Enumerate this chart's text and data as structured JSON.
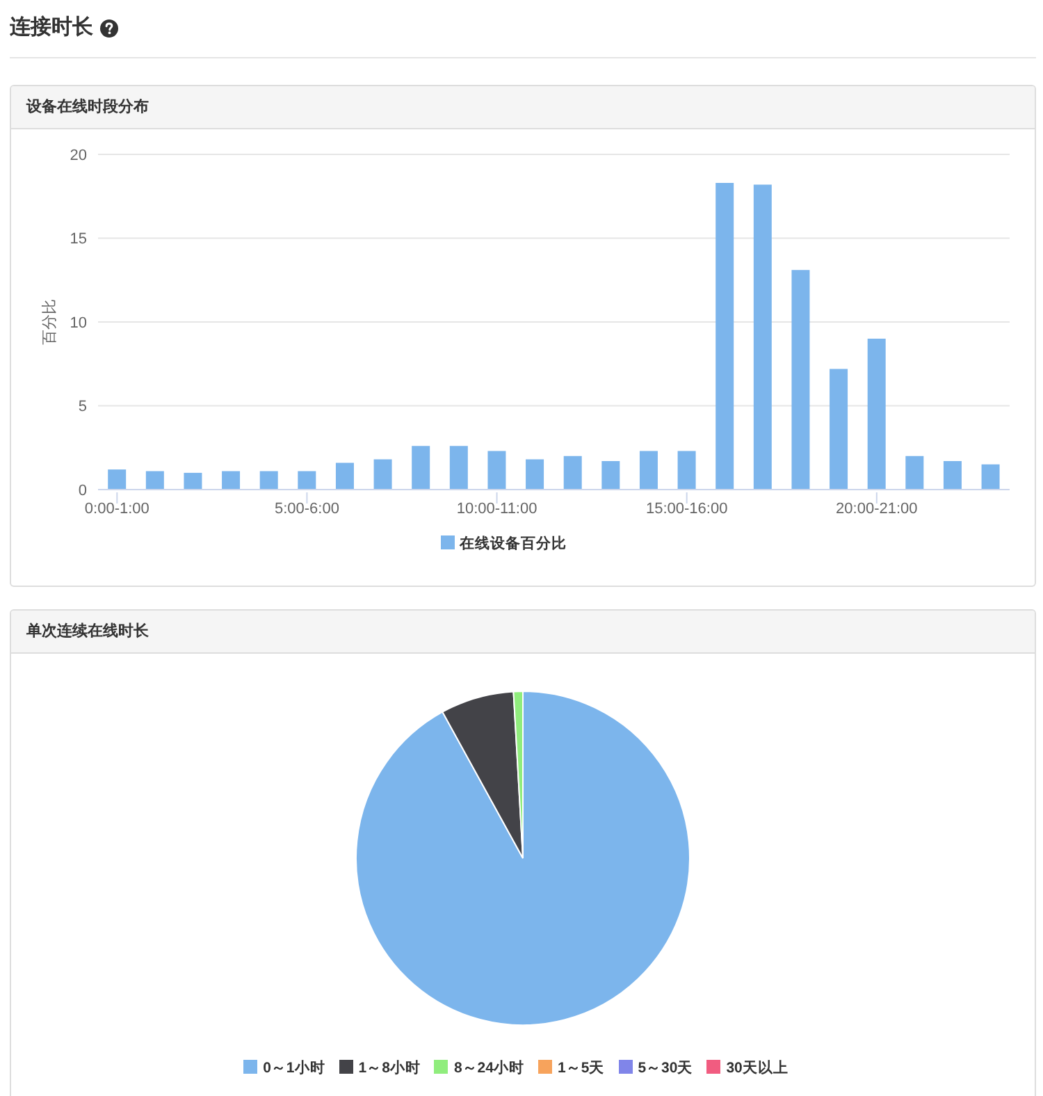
{
  "chart_data": [
    {
      "type": "bar",
      "title": "连接时长",
      "subtitle": "设备在线时段分布",
      "categories": [
        "0:00-1:00",
        null,
        null,
        null,
        null,
        "5:00-6:00",
        null,
        null,
        null,
        null,
        "10:00-11:00",
        null,
        null,
        null,
        null,
        "15:00-16:00",
        null,
        null,
        null,
        null,
        "20:00-21:00",
        null,
        null,
        null
      ],
      "series": [
        {
          "name": "在线设备百分比",
          "color": "#7cb5ec",
          "values": [
            1.2,
            1.1,
            1.0,
            1.1,
            1.1,
            1.1,
            1.6,
            1.8,
            2.6,
            2.6,
            2.3,
            1.8,
            2.0,
            1.7,
            2.3,
            2.3,
            18.3,
            18.2,
            13.1,
            7.2,
            9.0,
            2.0,
            1.7,
            1.5
          ]
        }
      ],
      "ylabel": "百分比",
      "ylim": [
        0,
        20
      ],
      "yticks": [
        0,
        5,
        10,
        15,
        20
      ],
      "grid": "y",
      "legend": "bottom"
    },
    {
      "type": "pie",
      "title": "单次连续在线时长",
      "categories": [
        "0～1小时",
        "1～8小时",
        "8～24小时",
        "1～5天",
        "5～30天",
        "30天以上"
      ],
      "values": [
        92.0,
        7.1,
        0.9,
        0,
        0,
        0
      ],
      "colors": [
        "#7cb5ec",
        "#434348",
        "#90ed7d",
        "#f7a35c",
        "#8085e9",
        "#f15c80"
      ],
      "legend": "bottom"
    }
  ]
}
